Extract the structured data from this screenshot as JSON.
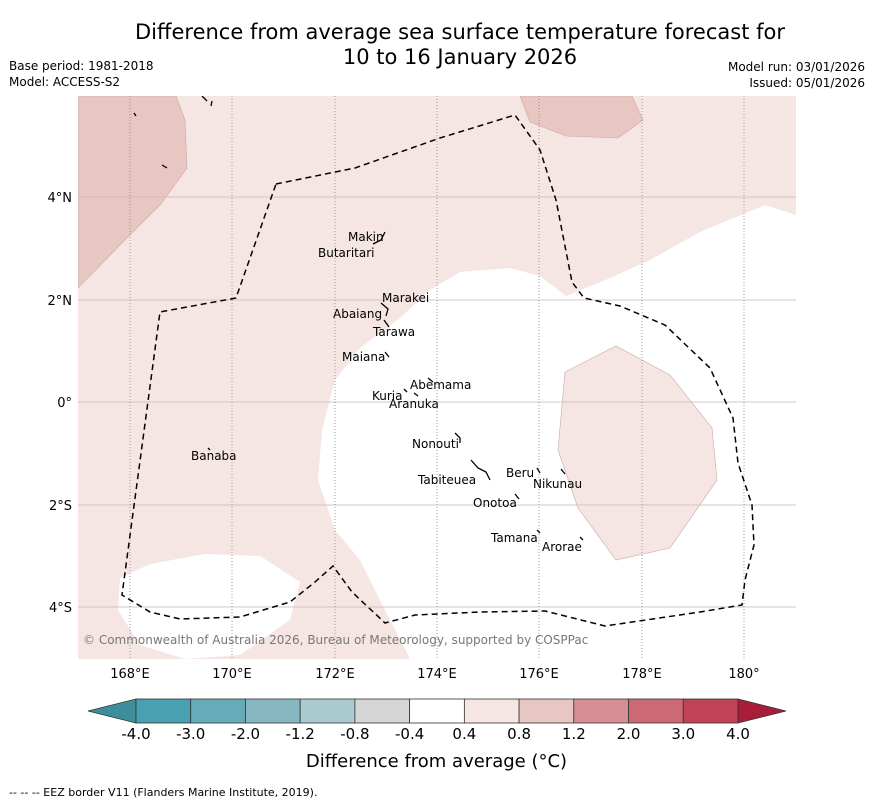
{
  "title_line1": "Difference from average sea surface temperature forecast for",
  "title_line2": "10 to 16 January 2026",
  "base_period": "Base period: 1981-2018",
  "model": "Model: ACCESS-S2",
  "model_run": "Model run: 03/01/2026",
  "issued": "Issued: 05/01/2026",
  "lat_labels": [
    "4°N",
    "2°N",
    "0°",
    "2°S",
    "4°S"
  ],
  "lon_labels": [
    "168°E",
    "170°E",
    "172°E",
    "174°E",
    "176°E",
    "178°E",
    "180°"
  ],
  "islands": [
    "Makin",
    "Butaritari",
    "Marakei",
    "Abaiang",
    "Tarawa",
    "Maiana",
    "Abemama",
    "Kuria",
    "Aranuka",
    "Banaba",
    "Nonouti",
    "Tabiteuea",
    "Beru",
    "Nikunau",
    "Onotoa",
    "Tamana",
    "Arorae"
  ],
  "copyright": "© Commonwealth of Australia 2026, Bureau of Meteorology, supported by COSPPac",
  "colorbar": {
    "ticks": [
      "-4.0",
      "-3.0",
      "-2.0",
      "-1.2",
      "-0.8",
      "-0.4",
      "0.4",
      "0.8",
      "1.2",
      "2.0",
      "3.0",
      "4.0"
    ],
    "colors": [
      "#3f8e9b",
      "#48a0b0",
      "#67abb8",
      "#87b8c2",
      "#a9cbd0",
      "#d5d5d5",
      "#ffffff",
      "#f5e5e3",
      "#e8c6c2",
      "#d78f96",
      "#cb6a74",
      "#c04455",
      "#a81e3a"
    ],
    "title": "Difference from average (°C)"
  },
  "colors": {
    "anom_04_08": "#f5e6e4",
    "anom_08_12": "#e8c7c3",
    "neutral": "#ffffff",
    "grid": "#c8b4b4"
  },
  "footer": "--  --  -- EEZ border V11 (Flanders Marine Institute, 2019)."
}
